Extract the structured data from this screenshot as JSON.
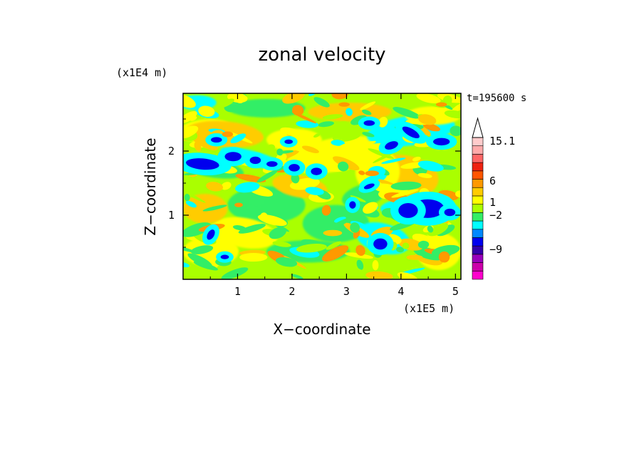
{
  "chart_data": {
    "type": "heatmap",
    "title": "zonal velocity",
    "xlabel": "X−coordinate",
    "ylabel": "Z−coordinate",
    "x_unit": "(x1E5 m)",
    "y_unit": "(x1E4 m)",
    "time_label": "t=195600 s",
    "x_ticks": [
      "1",
      "2",
      "3",
      "4",
      "5"
    ],
    "x_tick_values": [
      1,
      2,
      3,
      4,
      5
    ],
    "y_ticks": [
      "1",
      "2"
    ],
    "y_tick_values": [
      1,
      2
    ],
    "xlim": [
      0,
      5.1
    ],
    "ylim": [
      0,
      2.9
    ],
    "colorbar": {
      "labels": [
        "15.1",
        "6",
        "1",
        "−2",
        "−9"
      ],
      "label_values": [
        15.1,
        6,
        1,
        -2,
        -9
      ],
      "colors": [
        "#ff00cc",
        "#cc00aa",
        "#9900bb",
        "#3300aa",
        "#0000ee",
        "#0088ff",
        "#00ffff",
        "#33ee66",
        "#aaff00",
        "#ffff00",
        "#ffcc00",
        "#ff9900",
        "#ff5500",
        "#ee2211",
        "#ff6666",
        "#ffaaaa",
        "#ffcccc"
      ]
    }
  }
}
